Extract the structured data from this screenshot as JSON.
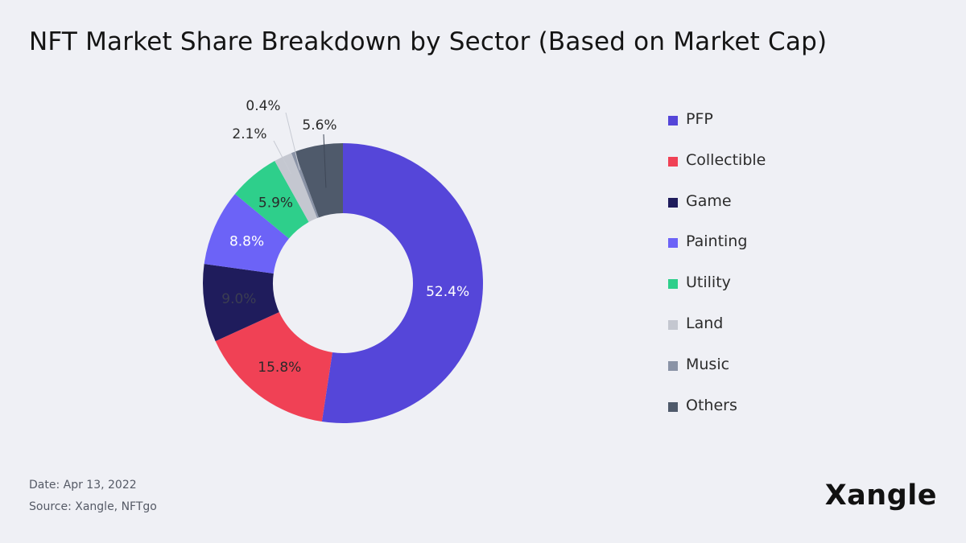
{
  "title": "NFT Market Share Breakdown by Sector (Based on Market Cap)",
  "footer": {
    "date": "Date: Apr 13, 2022",
    "source": "Source: Xangle, NFTgo"
  },
  "brand": "Xangle",
  "chart_data": {
    "type": "pie",
    "variant": "donut",
    "title": "NFT Market Share Breakdown by Sector (Based on Market Cap)",
    "unit": "%",
    "legend_position": "right",
    "slices": [
      {
        "name": "PFP",
        "value": 52.4,
        "label": "52.4%",
        "color": "#5546d9",
        "label_color": "#ffffff"
      },
      {
        "name": "Collectible",
        "value": 15.8,
        "label": "15.8%",
        "color": "#f04155",
        "label_color": "#2a2a2a"
      },
      {
        "name": "Game",
        "value": 9.0,
        "label": "9.0%",
        "color": "#1f1c5c",
        "label_color": "#3b3d52"
      },
      {
        "name": "Painting",
        "value": 8.8,
        "label": "8.8%",
        "color": "#6c63f7",
        "label_color": "#ffffff"
      },
      {
        "name": "Utility",
        "value": 5.9,
        "label": "5.9%",
        "color": "#2ecf8b",
        "label_color": "#2a2a2a"
      },
      {
        "name": "Land",
        "value": 2.1,
        "label": "2.1%",
        "color": "#c4c7d0",
        "label_color": "#2a2a2a"
      },
      {
        "name": "Music",
        "value": 0.4,
        "label": "0.4%",
        "color": "#8a93a6",
        "label_color": "#2a2a2a"
      },
      {
        "name": "Others",
        "value": 5.6,
        "label": "5.6%",
        "color": "#4f5a6b",
        "label_color": "#2a2a2a"
      }
    ]
  }
}
